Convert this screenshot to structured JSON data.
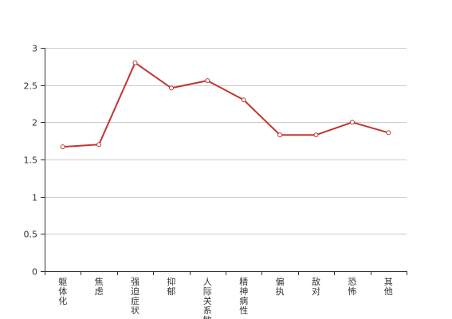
{
  "chart_data": {
    "type": "line",
    "title": "",
    "xlabel": "",
    "ylabel": "",
    "categories": [
      "躯体化",
      "焦虑",
      "强迫症状",
      "抑郁",
      "人际关系敏感",
      "精神病性",
      "偏执",
      "敌对",
      "恐怖",
      "其他"
    ],
    "series": [
      {
        "values": [
          1.67,
          1.7,
          2.8,
          2.46,
          2.56,
          2.3,
          1.83,
          1.83,
          2.0,
          1.86
        ]
      }
    ],
    "ylim": [
      0,
      3
    ],
    "yticks": [
      "0",
      "0.5",
      "1",
      "1.5",
      "2",
      "2.5",
      "3"
    ],
    "grid": true,
    "legend": "none",
    "colors": {
      "line": "#c23531",
      "grid": "#cccccc",
      "axis": "#333333",
      "marker_fill": "#ffffff"
    }
  }
}
